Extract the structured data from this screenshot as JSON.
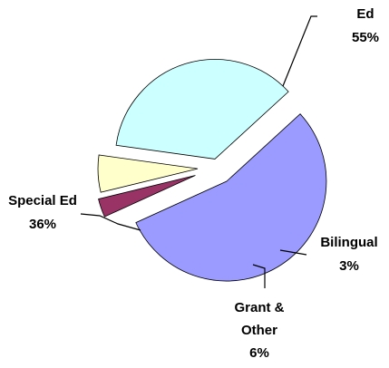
{
  "chart_data": {
    "type": "pie",
    "exploded": true,
    "legend": "none",
    "slices": [
      {
        "name": "Ed",
        "value": 55,
        "label_lines": [
          "Ed",
          "55%"
        ],
        "color": "#9a9aff"
      },
      {
        "name": "Bilingual",
        "value": 3,
        "label_lines": [
          "Bilingual",
          "3%"
        ],
        "color": "#993366"
      },
      {
        "name": "Grant & Other",
        "value": 6,
        "label_lines": [
          "Grant &",
          "Other",
          "6%"
        ],
        "color": "#ffffcc"
      },
      {
        "name": "Special Ed",
        "value": 36,
        "label_lines": [
          "Special Ed",
          "36%"
        ],
        "color": "#ccffff"
      }
    ]
  }
}
